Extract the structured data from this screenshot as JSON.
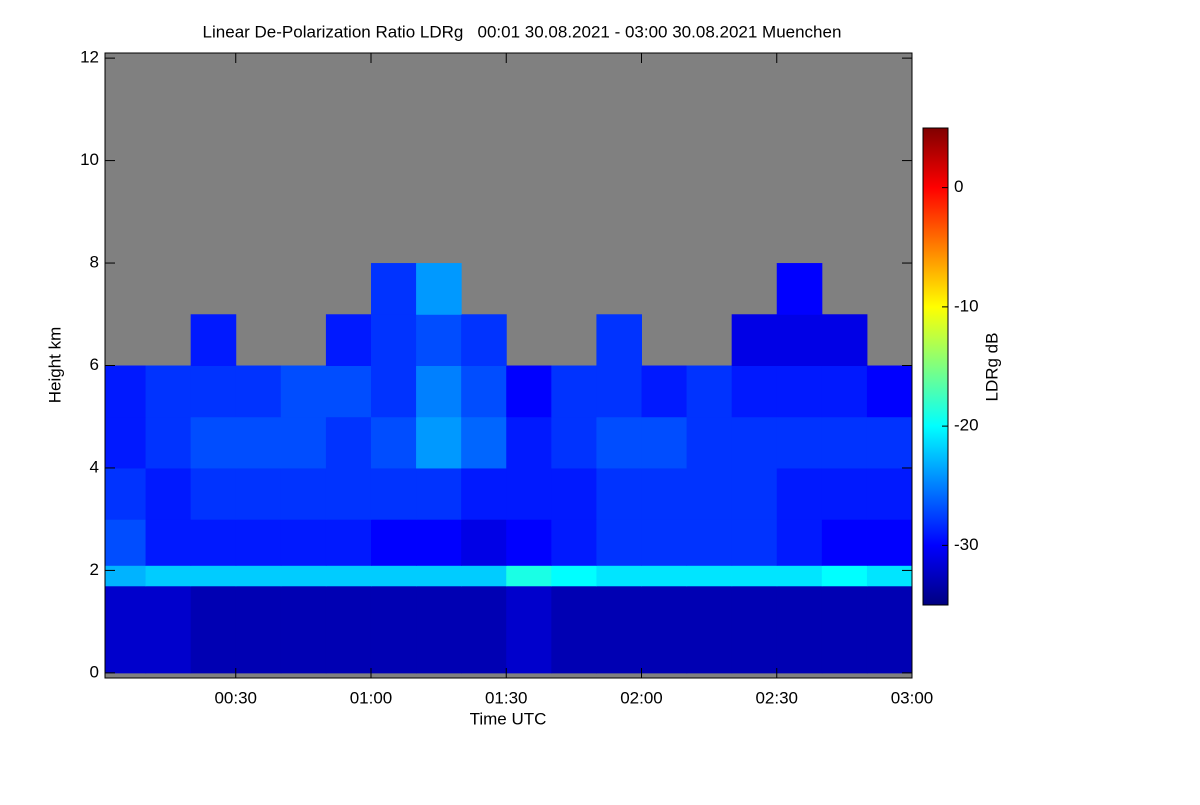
{
  "chart_data": {
    "type": "heatmap",
    "title": "Linear De-Polarization Ratio LDRg   00:01 30.08.2021 - 03:00 30.08.2021 Muenchen",
    "xlabel": "Time UTC",
    "ylabel": "Height km",
    "colorbar_label": "LDRg dB",
    "colormap": "jet",
    "missing_color": "#808080",
    "xlim": [
      1,
      180
    ],
    "xticks": [
      {
        "value": 30,
        "label": "00:30"
      },
      {
        "value": 60,
        "label": "01:00"
      },
      {
        "value": 90,
        "label": "01:30"
      },
      {
        "value": 120,
        "label": "02:00"
      },
      {
        "value": 150,
        "label": "02:30"
      },
      {
        "value": 180,
        "label": "03:00"
      }
    ],
    "ylim": [
      -0.1,
      12.1
    ],
    "yticks": [
      0,
      2,
      4,
      6,
      8,
      10,
      12
    ],
    "clim": [
      -35,
      5
    ],
    "cticks": [
      0,
      -10,
      -20,
      -30
    ],
    "xbins": [
      0,
      10,
      20,
      30,
      40,
      50,
      60,
      70,
      80,
      90,
      100,
      110,
      120,
      130,
      140,
      150,
      160,
      170,
      180
    ],
    "ybins": [
      0,
      1.7,
      2.1,
      3,
      4,
      5,
      6,
      7,
      8,
      12
    ],
    "values": [
      [
        -32,
        -32,
        -33,
        -33,
        -33,
        -33,
        -33,
        -33,
        -33,
        -32,
        -33,
        -33,
        -33,
        -33,
        -33,
        -33,
        -33,
        -33
      ],
      [
        -23,
        -22,
        -22,
        -22,
        -22,
        -22,
        -22,
        -22,
        -22,
        -19,
        -20,
        -21,
        -21,
        -21,
        -21,
        -21,
        -20,
        -21
      ],
      [
        -27,
        -29,
        -29,
        -29,
        -29,
        -29,
        -30,
        -30,
        -31,
        -30,
        -29,
        -28,
        -28,
        -28,
        -28,
        -29,
        -30,
        -30
      ],
      [
        -28,
        -29,
        -28,
        -28,
        -28,
        -28,
        -28,
        -28,
        -29,
        -29,
        -29,
        -28,
        -28,
        -28,
        -28,
        -29,
        -29,
        -29
      ],
      [
        -29,
        -28,
        -27,
        -27,
        -27,
        -28,
        -27,
        -24,
        -26,
        -29,
        -28,
        -27,
        -27,
        -28,
        -28,
        -28,
        -28,
        -28
      ],
      [
        -29,
        -28,
        -28,
        -28,
        -27,
        -27,
        -28,
        -25,
        -27,
        -30,
        -28,
        -28,
        -29,
        -28,
        -29,
        -29,
        -29,
        -30
      ],
      [
        null,
        null,
        -29,
        null,
        null,
        -29,
        -28,
        -27,
        -28,
        null,
        null,
        -28,
        null,
        null,
        -31,
        -31,
        -31,
        null
      ],
      [
        null,
        null,
        null,
        null,
        null,
        null,
        -28,
        -24,
        null,
        null,
        null,
        null,
        null,
        null,
        null,
        -30,
        null,
        null
      ],
      [
        null,
        null,
        null,
        null,
        null,
        null,
        null,
        null,
        null,
        null,
        null,
        null,
        null,
        null,
        null,
        null,
        null,
        null
      ]
    ]
  }
}
